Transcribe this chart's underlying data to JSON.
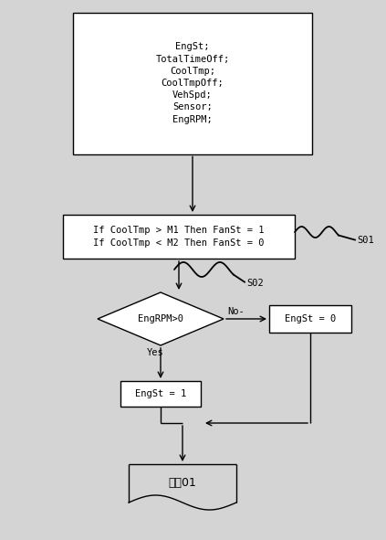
{
  "bg_color": "#d4d4d4",
  "box_color": "#ffffff",
  "box_edge_color": "#000000",
  "text_color": "#000000",
  "arrow_color": "#000000",
  "font_family": "monospace",
  "font_size": 7.5,
  "box1_text": "EngSt;\nTotalTimeOff;\nCoolTmp;\nCoolTmpOff;\nVehSpd;\nSensor;\nEngRPM;",
  "box2_text": "If CoolTmp > M1 Then FanSt = 1\nIf CoolTmp < M2 Then FanSt = 0",
  "diamond_text": "EngRPM>0",
  "box3_text": "EngSt = 0",
  "box4_text": "EngSt = 1",
  "box5_text": "动伀01",
  "label_s01": "S01",
  "label_s02": "S02",
  "label_yes": "Yes",
  "label_no": "No-"
}
